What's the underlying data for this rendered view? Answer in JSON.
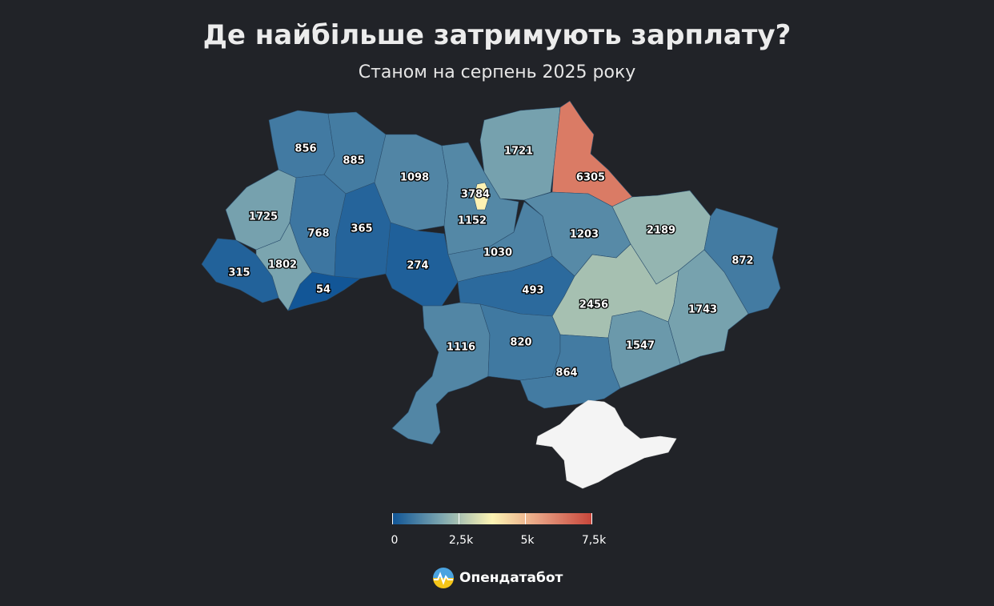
{
  "title": "Де найбільше затримують зарплату?",
  "subtitle": "Станом на серпень 2025 року",
  "map": {
    "type": "choropleth",
    "scale": {
      "min": 0,
      "max": 7500,
      "colors": [
        "#0f5496",
        "#7fa8b0",
        "#fdf4b4",
        "#e59a7e",
        "#c8453a"
      ],
      "tick_labels": [
        "0",
        "2,5k",
        "5k",
        "7,5k"
      ],
      "tick_values": [
        0,
        2500,
        5000,
        7500
      ]
    },
    "regions": [
      {
        "id": "volyn",
        "value": 856
      },
      {
        "id": "rivne",
        "value": 885
      },
      {
        "id": "zhytomyr",
        "value": 1098
      },
      {
        "id": "kyiv-city",
        "value": 3784
      },
      {
        "id": "kyiv-oblast",
        "value": 1152
      },
      {
        "id": "chernihiv",
        "value": 1721
      },
      {
        "id": "sumy",
        "value": 6305
      },
      {
        "id": "lviv",
        "value": 1725
      },
      {
        "id": "ternopil",
        "value": 768
      },
      {
        "id": "khmelnytskyi",
        "value": 365
      },
      {
        "id": "vinnytsia",
        "value": 274
      },
      {
        "id": "cherkasy",
        "value": 1030
      },
      {
        "id": "poltava",
        "value": 1203
      },
      {
        "id": "kharkiv",
        "value": 2189
      },
      {
        "id": "luhansk",
        "value": 872
      },
      {
        "id": "zakarpattia",
        "value": 315
      },
      {
        "id": "ivano-frankivsk",
        "value": 1802
      },
      {
        "id": "chernivtsi",
        "value": 54
      },
      {
        "id": "kirovohrad",
        "value": 493
      },
      {
        "id": "dnipropetrovsk",
        "value": 2456
      },
      {
        "id": "donetsk",
        "value": 1743
      },
      {
        "id": "odesa",
        "value": 1116
      },
      {
        "id": "mykolaiv",
        "value": 820
      },
      {
        "id": "kherson",
        "value": 864
      },
      {
        "id": "zaporizhzhia",
        "value": 1547
      },
      {
        "id": "crimea",
        "value": null
      }
    ]
  },
  "brand": {
    "name": "Опендатабот",
    "icon": "opendatabot-logo-icon"
  }
}
